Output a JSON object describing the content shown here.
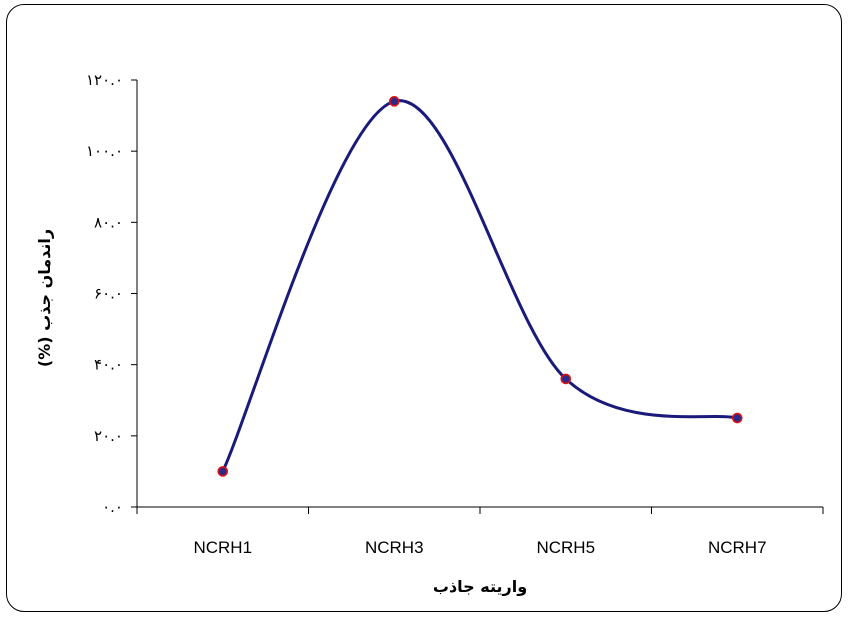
{
  "chart_data": {
    "type": "line",
    "title": "",
    "xlabel": "واریته جاذب",
    "ylabel": "راندمان جذب (%)",
    "categories": [
      "NCRH1",
      "NCRH3",
      "NCRH5",
      "NCRH7"
    ],
    "ylim": [
      0,
      120
    ],
    "ytick_values": [
      0,
      20,
      40,
      60,
      80,
      100,
      120
    ],
    "ytick_labels": [
      "۰.۰",
      "۲۰.۰",
      "۴۰.۰",
      "۶۰.۰",
      "۸۰.۰",
      "۱۰۰.۰",
      "۱۲۰.۰"
    ],
    "smooth": true,
    "grid": false,
    "legend": "none",
    "series": [
      {
        "values": [
          10,
          114,
          36,
          25
        ]
      }
    ],
    "colors": {
      "line": "#1a1a7a",
      "marker_fill": "#2a2a8a",
      "marker_edge": "#e01010",
      "axis": "#000000"
    }
  }
}
